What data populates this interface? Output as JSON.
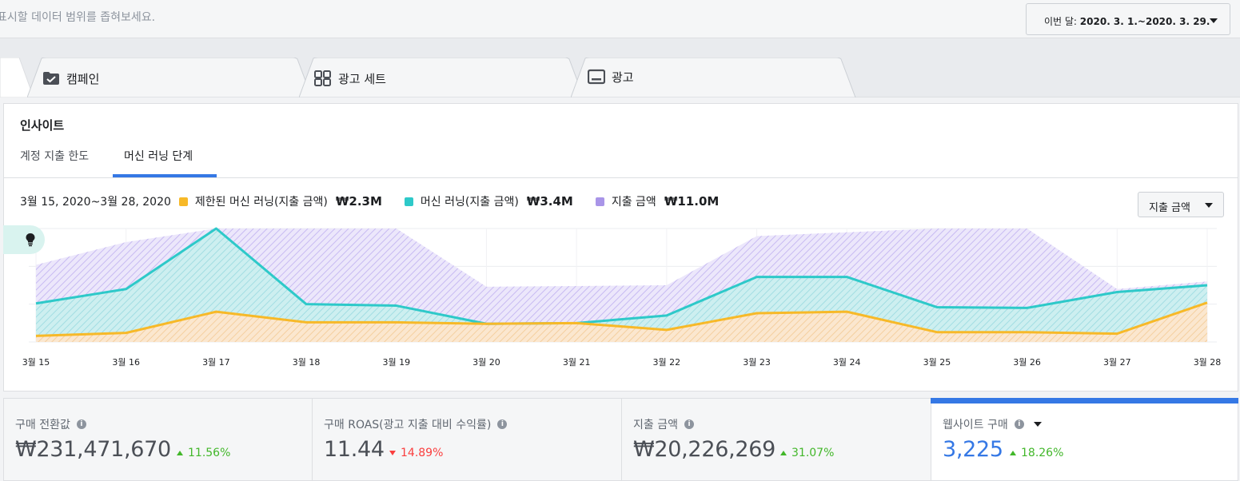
{
  "topbar": {
    "hint": "표시할 데이터 범위를 좁혀보세요.",
    "date_prefix": "이번 달: ",
    "date_range": "2020. 3. 1.~2020. 3. 29."
  },
  "tabs": [
    {
      "label": "캠페인",
      "icon": "campaign-folder-icon"
    },
    {
      "label": "광고 세트",
      "icon": "ad-set-grid-icon"
    },
    {
      "label": "광고",
      "icon": "ad-monitor-icon"
    }
  ],
  "insights": {
    "title": "인사이트",
    "subtabs": [
      "계정 지출 한도",
      "머신 러닝 단계"
    ],
    "active_subtab": 1,
    "metric_select": "지출 금액"
  },
  "legend": {
    "range": "3월 15, 2020~3월 28, 2020",
    "items": [
      {
        "name": "제한된 머신 러닝(지출 금액)",
        "value": "₩2.3M",
        "color": "#f7b928"
      },
      {
        "name": "머신 러닝(지출 금액)",
        "value": "₩3.4M",
        "color": "#2ec9c9"
      },
      {
        "name": "지출 금액",
        "value": "₩11.0M",
        "color": "#a995e8"
      }
    ]
  },
  "chart_data": {
    "type": "area",
    "title": "",
    "xlabel": "",
    "ylabel": "",
    "ylim": [
      0,
      150
    ],
    "grid": true,
    "categories": [
      "3월 15",
      "3월 16",
      "3월 17",
      "3월 18",
      "3월 19",
      "3월 20",
      "3월 21",
      "3월 22",
      "3월 23",
      "3월 24",
      "3월 25",
      "3월 26",
      "3월 27",
      "3월 28"
    ],
    "series": [
      {
        "name": "지출 금액",
        "color": "#a995e8",
        "values": [
          102,
          132,
          150,
          150,
          150,
          73,
          74,
          75,
          140,
          145,
          150,
          150,
          70,
          80
        ]
      },
      {
        "name": "머신 러닝(지출 금액)",
        "color": "#2ec9c9",
        "values": [
          51,
          70,
          150,
          50,
          48,
          24,
          25,
          35,
          86,
          86,
          46,
          45,
          66,
          75
        ]
      },
      {
        "name": "제한된 머신 러닝(지출 금액)",
        "color": "#f7b928",
        "values": [
          8,
          12,
          40,
          26,
          26,
          24,
          25,
          16,
          38,
          40,
          13,
          13,
          11,
          52
        ]
      }
    ]
  },
  "kpis": [
    {
      "label": "구매 전환값",
      "value": "₩231,471,670",
      "delta": "11.56%",
      "trend": "up"
    },
    {
      "label": "구매 ROAS(광고 지출 대비 수익률)",
      "value": "11.44",
      "delta": "14.89%",
      "trend": "down"
    },
    {
      "label": "지출 금액",
      "value": "₩20,226,269",
      "delta": "31.07%",
      "trend": "up"
    },
    {
      "label": "웹사이트 구매",
      "value": "3,225",
      "delta": "18.26%",
      "trend": "up"
    }
  ]
}
